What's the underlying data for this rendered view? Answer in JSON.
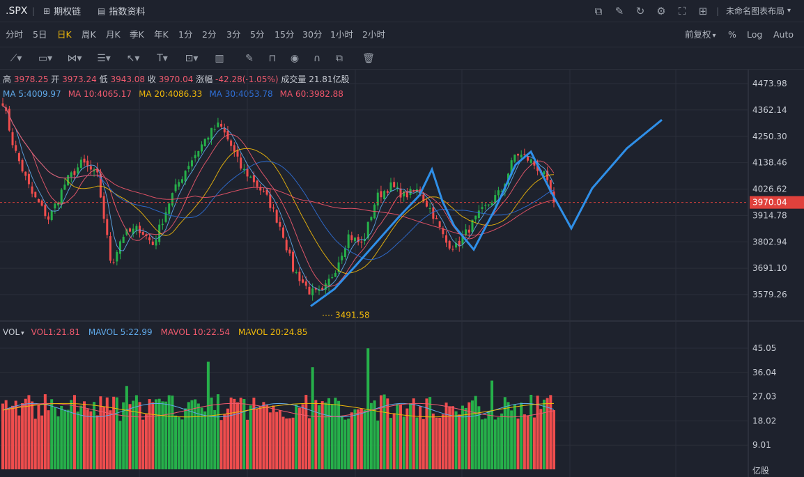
{
  "header": {
    "ticker": ".SPX",
    "separator": "|",
    "tab_options": "期权链",
    "tab_index_info": "指数资料",
    "layout_name": "未命名图表布局",
    "layout_caret": "▾",
    "icons": [
      "chart-icon",
      "draw-icon",
      "refresh-icon",
      "settings-icon",
      "fullscreen-icon",
      "grid-icon"
    ]
  },
  "periods": [
    {
      "label": "分时",
      "active": false
    },
    {
      "label": "5日",
      "active": false
    },
    {
      "label": "日K",
      "active": true
    },
    {
      "label": "周K",
      "active": false
    },
    {
      "label": "月K",
      "active": false
    },
    {
      "label": "季K",
      "active": false
    },
    {
      "label": "年K",
      "active": false
    },
    {
      "label": "1分",
      "active": false
    },
    {
      "label": "2分",
      "active": false
    },
    {
      "label": "3分",
      "active": false
    },
    {
      "label": "5分",
      "active": false
    },
    {
      "label": "15分",
      "active": false
    },
    {
      "label": "30分",
      "active": false
    },
    {
      "label": "1小时",
      "active": false
    },
    {
      "label": "2小时",
      "active": false
    }
  ],
  "period_right": {
    "adjust": "前复权",
    "adjust_caret": "▾",
    "percent": "%",
    "log": "Log",
    "auto": "Auto"
  },
  "quote": {
    "high_label": "高",
    "high": "3978.25",
    "open_label": "开",
    "open": "3973.24",
    "low_label": "低",
    "low": "3943.08",
    "close_label": "收",
    "close": "3970.04",
    "change_label": "涨幅",
    "change": "-42.28(-1.05%)",
    "volume_label": "成交量",
    "volume": "21.81亿股"
  },
  "ma_legend": [
    {
      "text": "MA  5:4009.97",
      "color": "#5fa8e8"
    },
    {
      "text": "MA  10:4065.17",
      "color": "#ef5a6e"
    },
    {
      "text": "MA  20:4086.33",
      "color": "#f0b90b"
    },
    {
      "text": "MA  30:4053.78",
      "color": "#2f6fd6"
    },
    {
      "text": "MA  60:3982.88",
      "color": "#f0556a"
    }
  ],
  "vol_legend": {
    "label": "VOL",
    "items": [
      {
        "text": "VOL1:21.81",
        "color": "#ef5a6e"
      },
      {
        "text": "MAVOL  5:22.99",
        "color": "#5fa8e8"
      },
      {
        "text": "MAVOL  10:22.54",
        "color": "#ef5a6e"
      },
      {
        "text": "MAVOL  20:24.85",
        "color": "#f0b90b"
      }
    ]
  },
  "colors": {
    "up": "#26b04a",
    "down": "#ef4d4d",
    "drawing": "#2f8fe8",
    "grid": "#2b2f3a",
    "price_tag": "#e0413c"
  },
  "chart_data": {
    "type": "candlestick",
    "price_axis": {
      "ticks": [
        4473.98,
        4362.14,
        4250.3,
        4138.46,
        4026.62,
        3914.78,
        3802.94,
        3691.1,
        3579.26
      ],
      "range": [
        3470,
        4500
      ]
    },
    "last_price": 3970.04,
    "low_marker": {
      "value": 3491.58,
      "label": "3491.58"
    },
    "volume_axis": {
      "ticks": [
        45.05,
        36.04,
        27.03,
        18.02,
        9.01
      ],
      "unit": "亿股",
      "range": [
        0,
        52
      ]
    },
    "drawn_path_prices": [
      3530,
      3603,
      3700,
      3800,
      3900,
      4000,
      4110,
      3975,
      3870,
      3770,
      3950,
      4130,
      4185,
      4020,
      3860,
      4030,
      4200,
      4320
    ]
  }
}
